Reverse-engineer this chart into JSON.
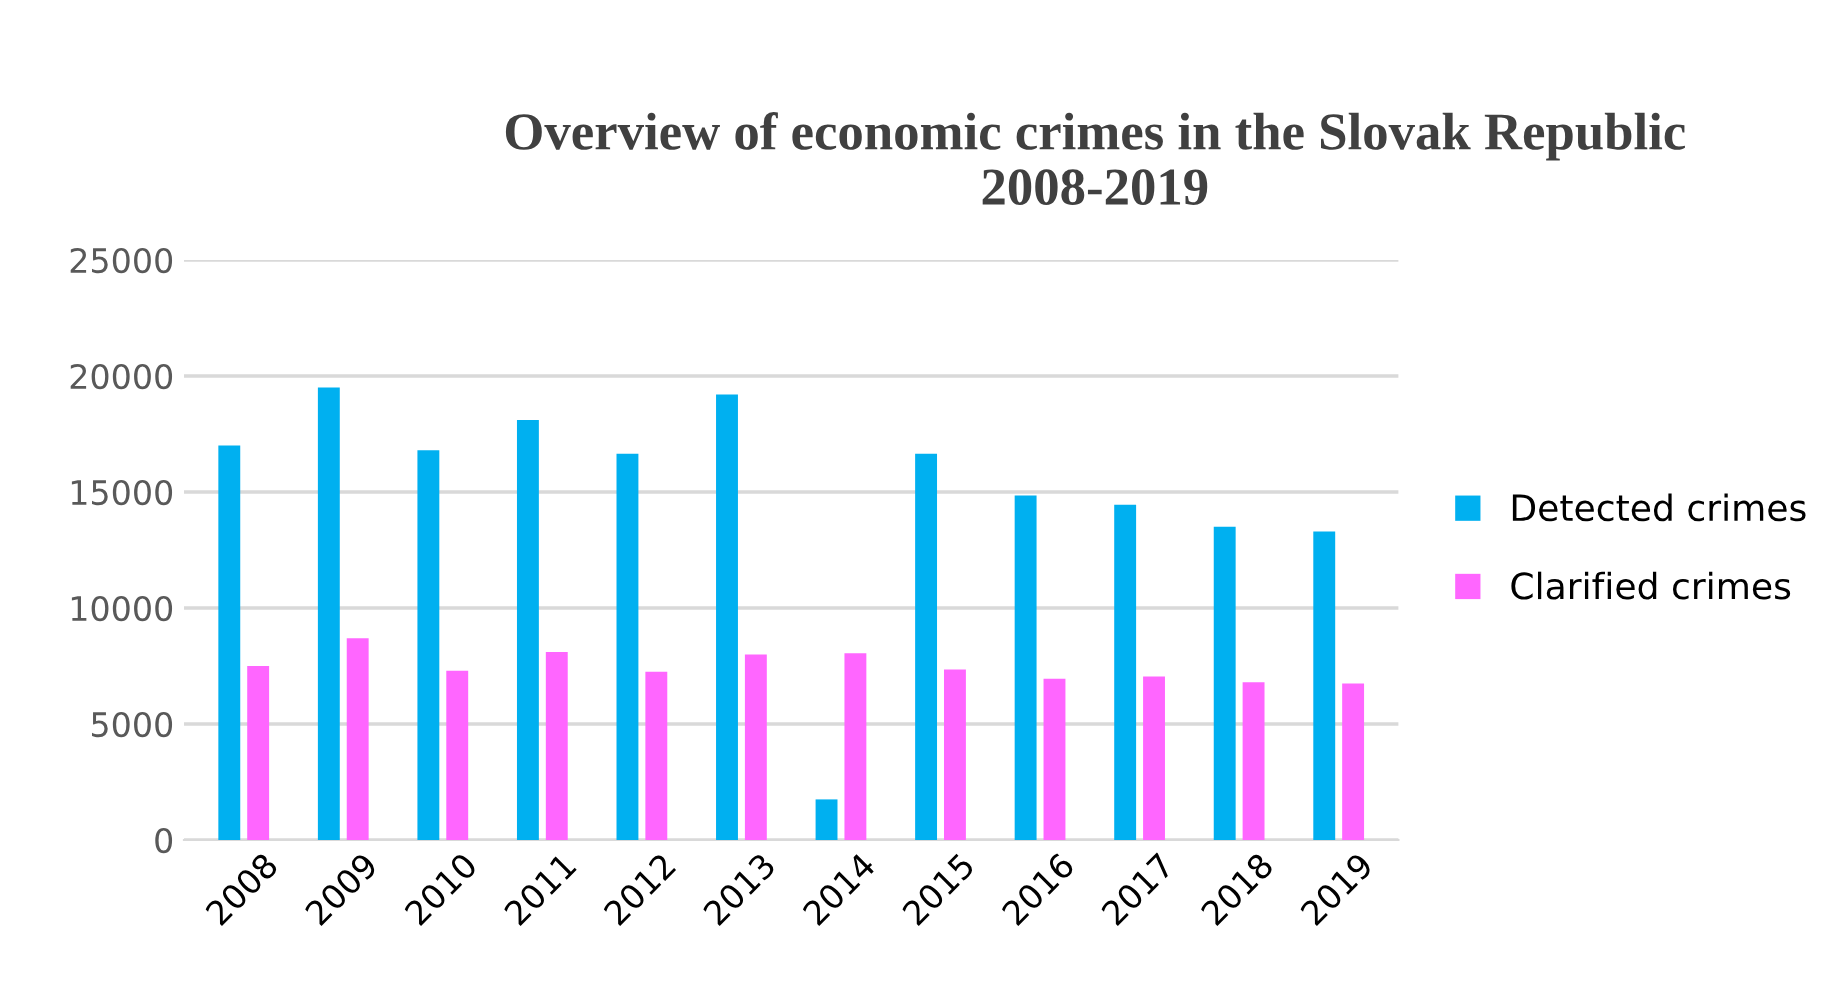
{
  "chart_data": {
    "type": "bar",
    "title": "Overview of economic crimes in the Slovak Republic\n2008-2019",
    "categories": [
      "2008",
      "2009",
      "2010",
      "2011",
      "2012",
      "2013",
      "2014",
      "2015",
      "2016",
      "2017",
      "2018",
      "2019"
    ],
    "series": [
      {
        "name": "Detected crimes",
        "color": "#00b0f0",
        "values": [
          17000,
          19500,
          16800,
          18100,
          16650,
          19200,
          1750,
          16650,
          14850,
          14450,
          13500,
          13300
        ]
      },
      {
        "name": "Clarified crimes",
        "color": "#ff66ff",
        "values": [
          7500,
          8700,
          7300,
          8100,
          7250,
          8000,
          8050,
          7350,
          6950,
          7050,
          6800,
          6750
        ]
      }
    ],
    "ylim": [
      0,
      25000
    ],
    "yticks": [
      0,
      5000,
      10000,
      15000,
      20000,
      25000
    ],
    "grid": "y",
    "legend": "right"
  }
}
